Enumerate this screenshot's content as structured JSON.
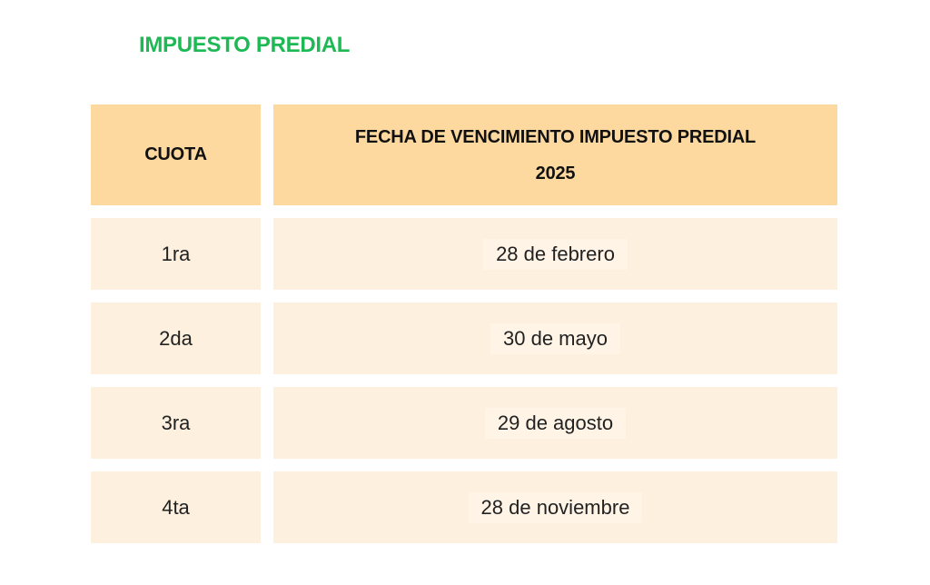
{
  "title": "IMPUESTO PREDIAL",
  "table": {
    "header": {
      "col1": "CUOTA",
      "col2_line1": "FECHA DE VENCIMIENTO IMPUESTO PREDIAL",
      "col2_line2": "2025"
    },
    "rows": [
      {
        "cuota": "1ra",
        "fecha": "28 de febrero"
      },
      {
        "cuota": "2da",
        "fecha": "30 de mayo"
      },
      {
        "cuota": "3ra",
        "fecha": "29 de agosto"
      },
      {
        "cuota": "4ta",
        "fecha": "28 de noviembre"
      }
    ]
  },
  "colors": {
    "title": "#1db954",
    "header_bg": "#fdd9a0",
    "row_bg": "#fdf0de"
  }
}
